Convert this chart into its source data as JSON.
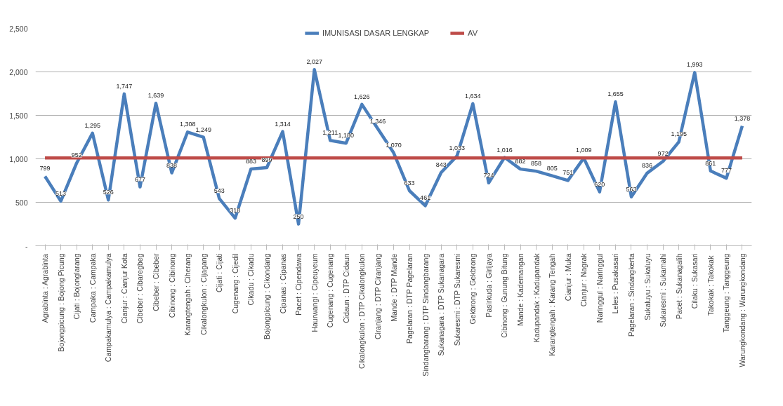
{
  "chart_data": {
    "type": "line",
    "categories": [
      "Agrabinta : Agrabinta",
      "Bojongpicung : Bojong Picung",
      "Cijati : Bojonglarang",
      "Campaka : Campaka",
      "Campakamulya : Campakamulya",
      "Cianjur : Cianjur Kota",
      "Cibeber : Cibaregbeg",
      "Cibeber : Cibeber",
      "Cibinong : Cibinong",
      "Karangtengah : Ciherang",
      "Cikalongkulon : Cijagang",
      "Cijati : Cijati",
      "Cugenang : Cijedil",
      "Cikadu : Cikadu",
      "Bojongpicung : Cikondang",
      "Cipanas : Cipanas",
      "Pacet : Cipendawa",
      "Haurwangi : Cipeuyeum",
      "Cugenang : Cugenang",
      "Cidaun : DTP Cidaun",
      "Cikalongkulon : DTP Cikalongkulon",
      "Ciranjang : DTP Ciranjang",
      "Mande : DTP Mande",
      "Pagelaran : DTP Pagelaran",
      "Sindangbarang : DTP Sindangbarang",
      "Sukanagara : DTP Sukanagara",
      "Sukaresmi : DTP Sukaresmi",
      "Gekbrong : Gekbrong",
      "Pasirkuda : Girijaya",
      "Cibinong : Gunung Bitung",
      "Mande : Kademangan",
      "Kadupandak : Kadupandak",
      "Karangtengah : Karang Tengah",
      "Cianjur : Muka",
      "Cianjur : Nagrak",
      "Naringgul : Naringgul",
      "Leles : Pusakasari",
      "Pagelaran : Sindangkerta",
      "Sukaluyu : Sukaluyu",
      "Sukaresmi : Sukamahi",
      "Pacet : Sukanagalih",
      "Cilaku : Sukasari",
      "Takokak  : Takokak",
      "Tanggeung : Tanggeung",
      "Warungkondang : Warungkondang"
    ],
    "series": [
      {
        "name": "IMUNISASI DASAR LENGKAP",
        "color": "#4a7ebb",
        "values": [
          799,
          513,
          952,
          1295,
          526,
          1747,
          677,
          1639,
          838,
          1308,
          1249,
          543,
          318,
          883,
          899,
          1314,
          250,
          2027,
          1211,
          1180,
          1626,
          1346,
          1070,
          633,
          461,
          843,
          1033,
          1634,
          724,
          1016,
          882,
          858,
          805,
          751,
          1009,
          620,
          1655,
          563,
          836,
          972,
          1195,
          1993,
          861,
          777,
          1378
        ],
        "value_labels": [
          "799",
          "513",
          "952",
          "1,295",
          "526",
          "1,747",
          "677",
          "1,639",
          "838",
          "1,308",
          "1,249",
          "543",
          "318",
          "883",
          "899",
          "1,314",
          "250",
          "2,027",
          "1,211",
          "1,180",
          "1,626",
          "1,346",
          "1,070",
          "633",
          "461",
          "843",
          "1,033",
          "1,634",
          "724",
          "1,016",
          "882",
          "858",
          "805",
          "751",
          "1,009",
          "620",
          "1,655",
          "563",
          "836",
          "972",
          "1,195",
          "1,993",
          "861",
          "777",
          "1,378"
        ]
      },
      {
        "name": "AV",
        "color": "#be4b48",
        "values": [
          1010,
          1010,
          1010,
          1010,
          1010,
          1010,
          1010,
          1010,
          1010,
          1010,
          1010,
          1010,
          1010,
          1010,
          1010,
          1010,
          1010,
          1010,
          1010,
          1010,
          1010,
          1010,
          1010,
          1010,
          1010,
          1010,
          1010,
          1010,
          1010,
          1010,
          1010,
          1010,
          1010,
          1010,
          1010,
          1010,
          1010,
          1010,
          1010,
          1010,
          1010,
          1010,
          1010,
          1010,
          1010
        ]
      }
    ],
    "ylim": [
      0,
      2500
    ],
    "yticks": [
      {
        "value": 0,
        "label": "-"
      },
      500,
      {
        "value": 1000,
        "label": "1,000"
      },
      {
        "value": 1500,
        "label": "1,500"
      },
      {
        "value": 2000,
        "label": "2,000"
      },
      {
        "value": 2500,
        "label": "2,500"
      }
    ],
    "grid": "y",
    "legend": "top",
    "marker": "none",
    "line_style": "solid"
  }
}
